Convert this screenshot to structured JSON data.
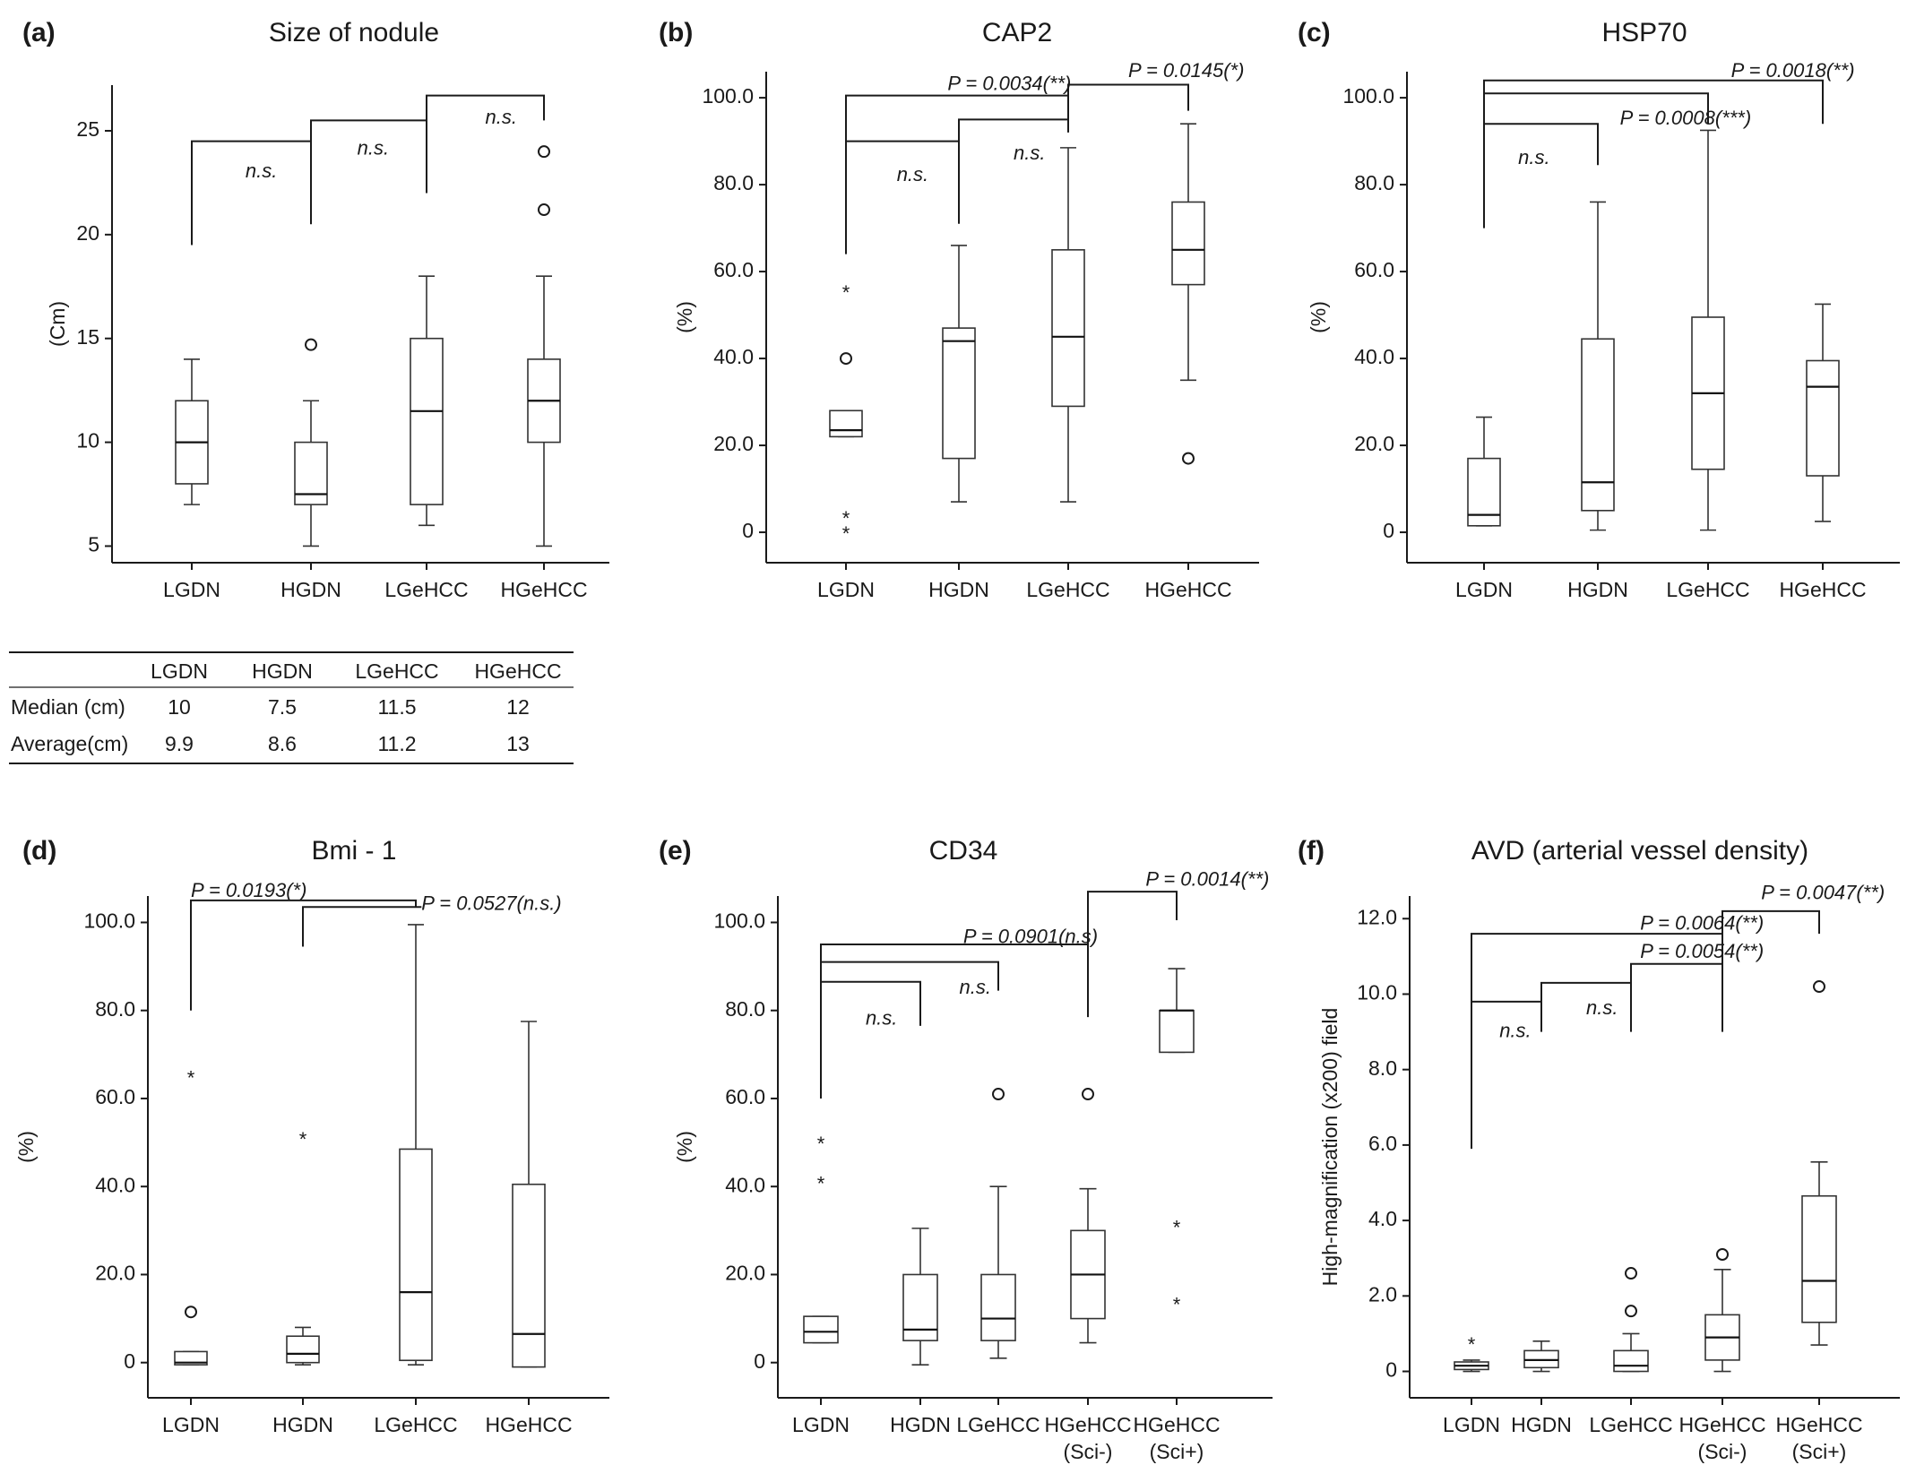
{
  "chart_data": [
    {
      "id": "a",
      "letter": "(a)",
      "title": "Size of nodule",
      "type": "box",
      "ylabel": "(Cm)",
      "ylim": [
        4.2,
        27.2
      ],
      "yticks": [
        5,
        10,
        15,
        20,
        25
      ],
      "ytick_labels": [
        "5",
        "10",
        "15",
        "20",
        "25"
      ],
      "categories": [
        [
          "LGDN"
        ],
        [
          "HGDN"
        ],
        [
          "LGeHCC"
        ],
        [
          "HGeHCC"
        ]
      ],
      "boxes": [
        {
          "min": 7,
          "q1": 8,
          "median": 10,
          "q3": 12,
          "max": 14,
          "outliers": []
        },
        {
          "min": 5,
          "q1": 7,
          "median": 7.5,
          "q3": 10,
          "max": 12,
          "outliers": [
            {
              "v": 14.7,
              "m": "o"
            }
          ]
        },
        {
          "min": 6,
          "q1": 7,
          "median": 11.5,
          "q3": 15,
          "max": 18,
          "outliers": []
        },
        {
          "min": 5,
          "q1": 10,
          "median": 12,
          "q3": 14,
          "max": 18,
          "outliers": [
            {
              "v": 21.2,
              "m": "o"
            },
            {
              "v": 24,
              "m": "o"
            }
          ]
        }
      ],
      "brackets": [
        {
          "pts": [
            [
              0,
              19.5
            ],
            [
              0,
              24.5
            ],
            [
              1,
              24.5
            ],
            [
              1,
              20.5
            ]
          ],
          "labels": [
            {
              "text": "n.s.",
              "x": 0.45,
              "y": 23
            }
          ]
        },
        {
          "pts": [
            [
              1,
              24.5
            ],
            [
              1,
              25.5
            ],
            [
              2,
              25.5
            ],
            [
              2,
              22
            ]
          ],
          "labels": [
            {
              "text": "n.s.",
              "x": 1.4,
              "y": 24.1
            }
          ]
        },
        {
          "pts": [
            [
              2,
              25.5
            ],
            [
              2,
              26.7
            ],
            [
              3,
              26.7
            ],
            [
              3,
              25.5
            ]
          ],
          "labels": [
            {
              "text": "n.s.",
              "x": 2.5,
              "y": 25.6
            }
          ]
        }
      ]
    },
    {
      "id": "b",
      "letter": "(b)",
      "title": "CAP2",
      "type": "box",
      "ylabel": "(%)",
      "ylim": [
        -7,
        106
      ],
      "yticks": [
        0,
        20,
        40,
        60,
        80,
        100
      ],
      "ytick_labels": [
        "0",
        "20.0",
        "40.0",
        "60.0",
        "80.0",
        "100.0"
      ],
      "categories": [
        [
          "LGDN"
        ],
        [
          "HGDN"
        ],
        [
          "LGeHCC"
        ],
        [
          "HGeHCC"
        ]
      ],
      "boxes": [
        {
          "min": 22,
          "q1": 22,
          "median": 23.5,
          "q3": 28,
          "max": 28,
          "outliers": [
            {
              "v": 55.5,
              "m": "*"
            },
            {
              "v": 40,
              "m": "o"
            },
            {
              "v": 3.5,
              "m": "*"
            },
            {
              "v": 0,
              "m": "*"
            }
          ]
        },
        {
          "min": 7,
          "q1": 17,
          "median": 44,
          "q3": 47,
          "max": 66,
          "outliers": []
        },
        {
          "min": 7,
          "q1": 29,
          "median": 45,
          "q3": 65,
          "max": 88.5,
          "outliers": []
        },
        {
          "min": 35,
          "q1": 57,
          "median": 65,
          "q3": 76,
          "max": 94,
          "outliers": [
            {
              "v": 17,
              "m": "o"
            }
          ]
        }
      ],
      "brackets": [
        {
          "pts": [
            [
              0,
              64
            ],
            [
              0,
              90
            ],
            [
              1,
              90
            ],
            [
              1,
              71
            ]
          ],
          "labels": [
            {
              "text": "n.s.",
              "x": 0.45,
              "y": 82
            }
          ]
        },
        {
          "pts": [
            [
              1,
              90
            ],
            [
              1,
              95
            ],
            [
              2,
              95
            ],
            [
              2,
              92
            ]
          ],
          "labels": [
            {
              "text": "n.s.",
              "x": 1.5,
              "y": 87
            }
          ]
        },
        {
          "pts": [
            [
              0,
              90
            ],
            [
              0,
              100.5
            ],
            [
              2,
              100.5
            ],
            [
              2,
              95
            ]
          ],
          "labels": [
            {
              "text": "P = 0.0034(**)",
              "x": 0.9,
              "y": 103
            }
          ]
        },
        {
          "pts": [
            [
              2,
              100.5
            ],
            [
              2,
              103
            ],
            [
              3,
              103
            ],
            [
              3,
              97
            ]
          ],
          "labels": [
            {
              "text": "P = 0.0145(*)",
              "x": 2.5,
              "y": 106
            }
          ]
        }
      ]
    },
    {
      "id": "c",
      "letter": "(c)",
      "title": "HSP70",
      "type": "box",
      "ylabel": "(%)",
      "ylim": [
        -7,
        106
      ],
      "yticks": [
        0,
        20,
        40,
        60,
        80,
        100
      ],
      "ytick_labels": [
        "0",
        "20.0",
        "40.0",
        "60.0",
        "80.0",
        "100.0"
      ],
      "categories": [
        [
          "LGDN"
        ],
        [
          "HGDN"
        ],
        [
          "LGeHCC"
        ],
        [
          "HGeHCC"
        ]
      ],
      "boxes": [
        {
          "min": 1.5,
          "q1": 1.5,
          "median": 4,
          "q3": 17,
          "max": 26.5,
          "outliers": []
        },
        {
          "min": 0.5,
          "q1": 5,
          "median": 11.5,
          "q3": 44.5,
          "max": 76,
          "outliers": []
        },
        {
          "min": 0.5,
          "q1": 14.5,
          "median": 32,
          "q3": 49.5,
          "max": 92.5,
          "outliers": []
        },
        {
          "min": 2.5,
          "q1": 13,
          "median": 33.5,
          "q3": 39.5,
          "max": 52.5,
          "outliers": []
        }
      ],
      "brackets": [
        {
          "pts": [
            [
              0,
              70
            ],
            [
              0,
              94
            ],
            [
              1,
              94
            ],
            [
              1,
              84.5
            ]
          ],
          "labels": [
            {
              "text": "n.s.",
              "x": 0.3,
              "y": 86
            }
          ]
        },
        {
          "pts": [
            [
              0,
              94
            ],
            [
              0,
              101
            ],
            [
              2,
              101
            ],
            [
              2,
              94
            ]
          ],
          "labels": [
            {
              "text": "P = 0.0008(***)",
              "x": 1.2,
              "y": 95
            }
          ]
        },
        {
          "pts": [
            [
              0,
              101
            ],
            [
              0,
              104
            ],
            [
              3,
              104
            ],
            [
              3,
              94
            ]
          ],
          "labels": [
            {
              "text": "P = 0.0018(**)",
              "x": 2.2,
              "y": 106
            }
          ]
        }
      ]
    },
    {
      "id": "d",
      "letter": "(d)",
      "title": "Bmi - 1",
      "type": "box",
      "ylabel": "(%)",
      "ylim": [
        -8,
        106
      ],
      "yticks": [
        0,
        20,
        40,
        60,
        80,
        100
      ],
      "ytick_labels": [
        "0",
        "20.0",
        "40.0",
        "60.0",
        "80.0",
        "100.0"
      ],
      "categories": [
        [
          "LGDN"
        ],
        [
          "HGDN"
        ],
        [
          "LGeHCC"
        ],
        [
          "HGeHCC"
        ]
      ],
      "boxes": [
        {
          "min": -0.5,
          "q1": -0.5,
          "median": 0,
          "q3": 2.5,
          "max": 2.5,
          "outliers": [
            {
              "v": 65,
              "m": "*"
            },
            {
              "v": 11.5,
              "m": "o"
            }
          ]
        },
        {
          "min": -0.5,
          "q1": 0,
          "median": 2,
          "q3": 6,
          "max": 8,
          "outliers": [
            {
              "v": 51,
              "m": "*"
            }
          ]
        },
        {
          "min": -0.5,
          "q1": 0.5,
          "median": 16,
          "q3": 48.5,
          "max": 99.5,
          "outliers": []
        },
        {
          "min": -1,
          "q1": -1,
          "median": 6.5,
          "q3": 40.5,
          "max": 77.5,
          "outliers": []
        }
      ],
      "brackets": [
        {
          "pts": [
            [
              0,
              80
            ],
            [
              0,
              105
            ],
            [
              2,
              105
            ],
            [
              2,
              103.5
            ]
          ],
          "labels": [
            {
              "text": "P = 0.0193(*)",
              "x": 0,
              "y": 107
            }
          ]
        },
        {
          "pts": [
            [
              1,
              94.5
            ],
            [
              1,
              103.5
            ],
            [
              2.05,
              103.5
            ]
          ],
          "labels": [
            {
              "text": "P = 0.0527(n.s.)",
              "x": 2.05,
              "y": 104
            }
          ]
        }
      ]
    },
    {
      "id": "e",
      "letter": "(e)",
      "title": "CD34",
      "type": "box",
      "ylabel": "(%)",
      "ylim": [
        -8,
        106
      ],
      "yticks": [
        0,
        20,
        40,
        60,
        80,
        100
      ],
      "ytick_labels": [
        "0",
        "20.0",
        "40.0",
        "60.0",
        "80.0",
        "100.0"
      ],
      "categories": [
        [
          "LGDN"
        ],
        [
          "HGDN"
        ],
        [
          "LGeHCC"
        ],
        [
          "HGeHCC",
          "(Sci-)"
        ],
        [
          "HGeHCC",
          "(Sci+)"
        ]
      ],
      "boxes": [
        {
          "min": 4.5,
          "q1": 4.5,
          "median": 7,
          "q3": 10.5,
          "max": 10.5,
          "outliers": [
            {
              "v": 50,
              "m": "*"
            },
            {
              "v": 41,
              "m": "*"
            }
          ]
        },
        {
          "min": -0.5,
          "q1": 5,
          "median": 7.5,
          "q3": 20,
          "max": 30.5,
          "outliers": []
        },
        {
          "min": 1,
          "q1": 5,
          "median": 10,
          "q3": 20,
          "max": 40,
          "outliers": [
            {
              "v": 61,
              "m": "o"
            }
          ]
        },
        {
          "min": 4.5,
          "q1": 10,
          "median": 20,
          "q3": 30,
          "max": 39.5,
          "outliers": [
            {
              "v": 61,
              "m": "o"
            }
          ]
        },
        {
          "min": 70.5,
          "q1": 70.5,
          "median": 80,
          "q3": 80,
          "max": 89.5,
          "outliers": [
            {
              "v": 31,
              "m": "*"
            },
            {
              "v": 13.5,
              "m": "*"
            }
          ]
        }
      ],
      "brackets": [
        {
          "pts": [
            [
              0,
              86.5
            ],
            [
              0,
              86.5
            ],
            [
              1,
              86.5
            ],
            [
              1,
              76.5
            ]
          ],
          "labels": [
            {
              "text": "n.s.",
              "x": 0.45,
              "y": 78
            }
          ]
        },
        {
          "pts": [
            [
              0,
              60
            ],
            [
              0,
              95
            ],
            [
              3,
              95
            ],
            [
              3,
              78.5
            ]
          ],
          "labels": [
            {
              "text": "P = 0.0901(n.s)",
              "x": 1.55,
              "y": 96.5
            }
          ]
        },
        {
          "pts": [
            [
              0,
              91
            ],
            [
              2,
              91
            ],
            [
              2,
              84.5
            ]
          ],
          "labels": [
            {
              "text": "n.s.",
              "x": 1.5,
              "y": 85
            }
          ]
        },
        {
          "pts": [
            [
              3,
              95
            ],
            [
              3,
              107
            ],
            [
              4,
              107
            ],
            [
              4,
              100.5
            ]
          ],
          "labels": [
            {
              "text": "P = 0.0014(**)",
              "x": 3.65,
              "y": 109.5
            }
          ]
        }
      ]
    },
    {
      "id": "f",
      "letter": "(f)",
      "title": "AVD (arterial vessel density)",
      "type": "box",
      "ylabel": "High-magnification (x200) field",
      "ylim": [
        -0.7,
        12.6
      ],
      "yticks": [
        0,
        2,
        4,
        6,
        8,
        10,
        12
      ],
      "ytick_labels": [
        "0",
        "2.0",
        "4.0",
        "6.0",
        "8.0",
        "10.0",
        "12.0"
      ],
      "categories": [
        [
          "LGDN"
        ],
        [
          "HGDN"
        ],
        [
          "LGeHCC"
        ],
        [
          "HGeHCC",
          "(Sci-)"
        ],
        [
          "HGeHCC",
          "(Sci+)"
        ]
      ],
      "boxes": [
        {
          "min": 0,
          "q1": 0.05,
          "median": 0.15,
          "q3": 0.25,
          "max": 0.3,
          "outliers": [
            {
              "v": 0.75,
              "m": "*"
            }
          ]
        },
        {
          "min": 0,
          "q1": 0.1,
          "median": 0.3,
          "q3": 0.55,
          "max": 0.8,
          "outliers": []
        },
        {
          "min": 0,
          "q1": 0,
          "median": 0.15,
          "q3": 0.55,
          "max": 1,
          "outliers": [
            {
              "v": 2.6,
              "m": "o"
            },
            {
              "v": 1.6,
              "m": "o"
            }
          ]
        },
        {
          "min": 0,
          "q1": 0.3,
          "median": 0.9,
          "q3": 1.5,
          "max": 2.7,
          "outliers": [
            {
              "v": 3.1,
              "m": "o"
            }
          ]
        },
        {
          "min": 0.7,
          "q1": 1.3,
          "median": 2.4,
          "q3": 4.65,
          "max": 5.55,
          "outliers": [
            {
              "v": 10.2,
              "m": "o"
            }
          ]
        }
      ],
      "brackets": [
        {
          "pts": [
            [
              0,
              5.9
            ],
            [
              0,
              9.8
            ],
            [
              1,
              9.8
            ],
            [
              1,
              9
            ]
          ],
          "labels": [
            {
              "text": "n.s.",
              "x": 0.4,
              "y": 9
            }
          ]
        },
        {
          "pts": [
            [
              1,
              9.8
            ],
            [
              1,
              10.3
            ],
            [
              2,
              10.3
            ],
            [
              2,
              9
            ]
          ],
          "labels": [
            {
              "text": "n.s.",
              "x": 1.5,
              "y": 9.6
            }
          ]
        },
        {
          "pts": [
            [
              2,
              10.3
            ],
            [
              2,
              10.8
            ],
            [
              3,
              10.8
            ],
            [
              3,
              9
            ]
          ],
          "labels": [
            {
              "text": "P = 0.0054(**)",
              "x": 2.1,
              "y": 11.1
            }
          ]
        },
        {
          "pts": [
            [
              0,
              9.8
            ],
            [
              0,
              11.6
            ],
            [
              3,
              11.6
            ],
            [
              3,
              10.8
            ]
          ],
          "labels": [
            {
              "text": "P = 0.0064(**)",
              "x": 2.1,
              "y": 11.85
            }
          ]
        },
        {
          "pts": [
            [
              3,
              11.6
            ],
            [
              3,
              12.2
            ],
            [
              4,
              12.2
            ],
            [
              4,
              11.6
            ]
          ],
          "labels": [
            {
              "text": "P = 0.0047(**)",
              "x": 3.4,
              "y": 12.65
            }
          ]
        }
      ]
    }
  ],
  "summary_table": {
    "headers": [
      "",
      "LGDN",
      "HGDN",
      "LGeHCC",
      "HGeHCC"
    ],
    "rows": [
      [
        "Median (cm)",
        "10",
        "7.5",
        "11.5",
        "12"
      ],
      [
        "Average(cm)",
        "9.9",
        "8.6",
        "11.2",
        "13"
      ]
    ]
  }
}
